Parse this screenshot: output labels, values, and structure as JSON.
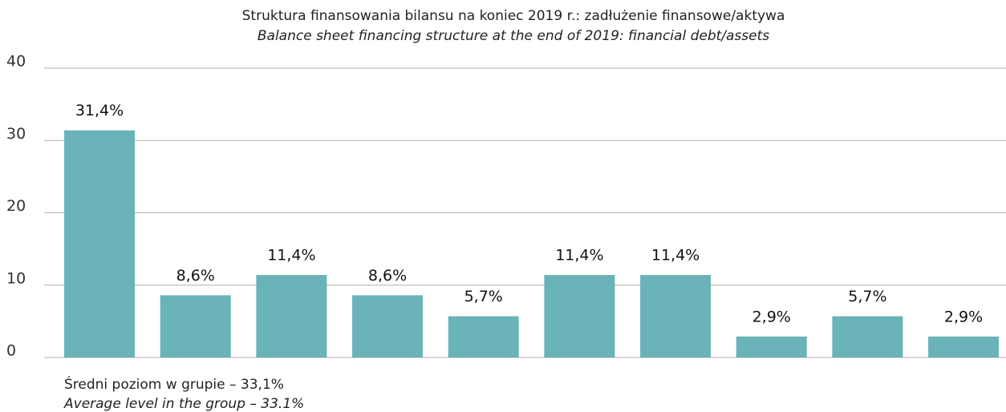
{
  "chart_data": {
    "type": "bar",
    "title": "Struktura finansowania bilansu na koniec 2019 r.: zadłużenie finansowe/aktywa",
    "subtitle": "Balance sheet financing structure at the end of 2019: financial debt/assets",
    "categories": [
      null,
      null,
      null,
      null,
      null,
      null,
      null,
      null,
      null,
      null
    ],
    "values": [
      31.4,
      8.6,
      11.4,
      8.6,
      5.7,
      11.4,
      11.4,
      2.9,
      5.7,
      2.9
    ],
    "value_labels": [
      "31,4%",
      "8,6%",
      "11,4%",
      "8,6%",
      "5,7%",
      "11,4%",
      "11,4%",
      "2,9%",
      "5,7%",
      "2,9%"
    ],
    "color": "#6ab3b8",
    "ylim": [
      0,
      40
    ],
    "yticks": [
      0,
      10,
      20,
      30,
      40
    ],
    "grid": true,
    "annotations": [
      "Średni poziom w grupie – 33,1%",
      "Average level in the group – 33.1%"
    ]
  }
}
